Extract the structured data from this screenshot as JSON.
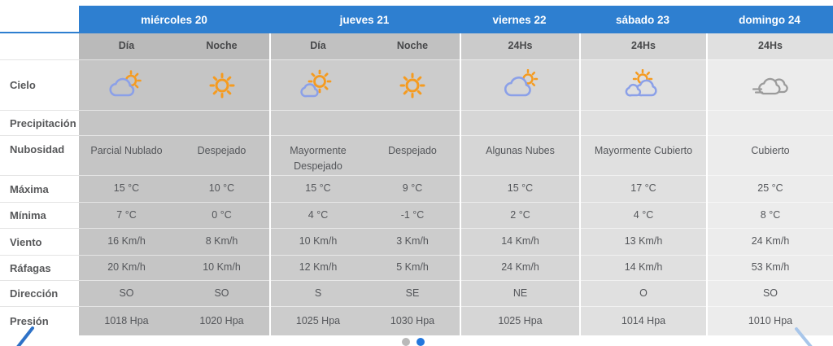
{
  "theme": {
    "header_blue": "#2e7fd0",
    "active_dot_blue": "#2277dd",
    "inactive_dot_gray": "#b9b9b9",
    "sun_orange": "#f59b20",
    "cloud_blue": "#8ba0e8",
    "cloud_gray": "#9b9b9b"
  },
  "header": {
    "days": [
      {
        "label": "miércoles 20"
      },
      {
        "label": "jueves 21"
      },
      {
        "label": "viernes 22"
      },
      {
        "label": "sábado 23"
      },
      {
        "label": "domingo 24"
      }
    ]
  },
  "rows": {
    "cielo": "Cielo",
    "precipitacion": "Precipitación",
    "nubosidad": "Nubosidad",
    "maxima": "Máxima",
    "minima": "Mínima",
    "viento": "Viento",
    "rafagas": "Ráfagas",
    "direccion": "Dirección",
    "presion": "Presión"
  },
  "columns": [
    {
      "day": "miércoles 20",
      "period": "Día",
      "sky_icon": "sun-behind-cloud-icon",
      "precipitacion": "",
      "nubosidad": "Parcial Nublado",
      "maxima": "15 °C",
      "minima": "7 °C",
      "viento": "16 Km/h",
      "rafagas": "20 Km/h",
      "direccion": "SO",
      "presion": "1018 Hpa"
    },
    {
      "day": "miércoles 20",
      "period": "Noche",
      "sky_icon": "sun-icon",
      "precipitacion": "",
      "nubosidad": "Despejado",
      "maxima": "10 °C",
      "minima": "0 °C",
      "viento": "8 Km/h",
      "rafagas": "10 Km/h",
      "direccion": "SO",
      "presion": "1020 Hpa"
    },
    {
      "day": "jueves 21",
      "period": "Día",
      "sky_icon": "sun-small-cloud-icon",
      "precipitacion": "",
      "nubosidad": "Mayormente Despejado",
      "maxima": "15 °C",
      "minima": "4 °C",
      "viento": "10 Km/h",
      "rafagas": "12 Km/h",
      "direccion": "S",
      "presion": "1025 Hpa"
    },
    {
      "day": "jueves 21",
      "period": "Noche",
      "sky_icon": "sun-icon",
      "precipitacion": "",
      "nubosidad": "Despejado",
      "maxima": "9 °C",
      "minima": "-1 °C",
      "viento": "3 Km/h",
      "rafagas": "5 Km/h",
      "direccion": "SE",
      "presion": "1030 Hpa"
    },
    {
      "day": "viernes 22",
      "period": "24Hs",
      "sky_icon": "cloud-sun-icon",
      "precipitacion": "",
      "nubosidad": "Algunas Nubes",
      "maxima": "15 °C",
      "minima": "2 °C",
      "viento": "14 Km/h",
      "rafagas": "24 Km/h",
      "direccion": "NE",
      "presion": "1025 Hpa"
    },
    {
      "day": "sábado 23",
      "period": "24Hs",
      "sky_icon": "sun-two-clouds-icon",
      "precipitacion": "",
      "nubosidad": "Mayormente Cubierto",
      "maxima": "17 °C",
      "minima": "4 °C",
      "viento": "13 Km/h",
      "rafagas": "14 Km/h",
      "direccion": "O",
      "presion": "1014 Hpa"
    },
    {
      "day": "domingo 24",
      "period": "24Hs",
      "sky_icon": "gray-clouds-wind-icon",
      "precipitacion": "",
      "nubosidad": "Cubierto",
      "maxima": "25 °C",
      "minima": "8 °C",
      "viento": "24 Km/h",
      "rafagas": "53 Km/h",
      "direccion": "SO",
      "presion": "1010 Hpa"
    }
  ],
  "carousel": {
    "prev_icon": "chevron-left-icon",
    "next_icon": "chevron-right-icon",
    "dots": [
      {
        "state": "inactive"
      },
      {
        "state": "active"
      }
    ]
  }
}
